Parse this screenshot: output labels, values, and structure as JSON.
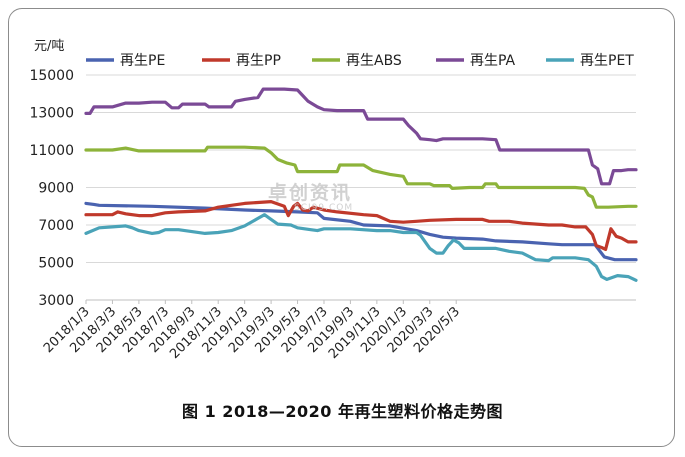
{
  "chart_data": {
    "type": "line",
    "ylabel": "元/吨",
    "ylim": [
      3000,
      15000
    ],
    "yticks": [
      3000,
      5000,
      7000,
      9000,
      11000,
      13000,
      15000
    ],
    "x_ticks": [
      "2018/1/3",
      "2018/3/3",
      "2018/5/3",
      "2018/7/3",
      "2018/9/3",
      "2018/11/3",
      "2019/1/3",
      "2019/3/3",
      "2019/5/3",
      "2019/7/3",
      "2019/9/3",
      "2019/11/3",
      "2020/1/3",
      "2020/3/3",
      "2020/5/3"
    ],
    "x_note": "x values are months since 2018/1 (decimal); last point ≈ 2020/6/20",
    "grid": "horizontal",
    "legend_position": "top",
    "series": [
      {
        "name": "再生PE",
        "color": "#4a63b0",
        "points": [
          [
            0,
            8150
          ],
          [
            0.6,
            8100
          ],
          [
            1,
            8050
          ],
          [
            5,
            8000
          ],
          [
            9,
            7900
          ],
          [
            12,
            7800
          ],
          [
            14,
            7750
          ],
          [
            16,
            7700
          ],
          [
            17.5,
            7650
          ],
          [
            18,
            7350
          ],
          [
            20,
            7200
          ],
          [
            21,
            7000
          ],
          [
            23,
            6950
          ],
          [
            25,
            6700
          ],
          [
            26,
            6500
          ],
          [
            27,
            6350
          ],
          [
            28,
            6300
          ],
          [
            30,
            6250
          ],
          [
            31,
            6150
          ],
          [
            33,
            6100
          ],
          [
            35,
            6000
          ],
          [
            36,
            5950
          ],
          [
            38,
            5950
          ],
          [
            38.5,
            5950
          ],
          [
            39.2,
            5300
          ],
          [
            40,
            5150
          ],
          [
            41,
            5150
          ],
          [
            41.6,
            5150
          ]
        ]
      },
      {
        "name": "再生PP",
        "color": "#c0392b",
        "points": [
          [
            0,
            7550
          ],
          [
            1,
            7550
          ],
          [
            2,
            7550
          ],
          [
            2.4,
            7700
          ],
          [
            3,
            7600
          ],
          [
            4,
            7500
          ],
          [
            5,
            7500
          ],
          [
            6,
            7650
          ],
          [
            7,
            7700
          ],
          [
            9,
            7750
          ],
          [
            10,
            7950
          ],
          [
            11,
            8050
          ],
          [
            12,
            8150
          ],
          [
            13,
            8200
          ],
          [
            14,
            8250
          ],
          [
            15,
            8000
          ],
          [
            15.3,
            7500
          ],
          [
            15.7,
            8000
          ],
          [
            16,
            8150
          ],
          [
            16.4,
            7800
          ],
          [
            16.8,
            7750
          ],
          [
            17.2,
            7950
          ],
          [
            18,
            7800
          ],
          [
            19,
            7700
          ],
          [
            21,
            7550
          ],
          [
            22,
            7500
          ],
          [
            23,
            7200
          ],
          [
            24,
            7150
          ],
          [
            25,
            7200
          ],
          [
            26,
            7250
          ],
          [
            28,
            7300
          ],
          [
            29,
            7300
          ],
          [
            30,
            7300
          ],
          [
            30.5,
            7200
          ],
          [
            32,
            7200
          ],
          [
            33,
            7100
          ],
          [
            35,
            7000
          ],
          [
            36,
            7000
          ],
          [
            37,
            6900
          ],
          [
            37.8,
            6900
          ],
          [
            38.3,
            6500
          ],
          [
            38.6,
            5900
          ],
          [
            39,
            5800
          ],
          [
            39.3,
            5700
          ],
          [
            39.7,
            6800
          ],
          [
            40.1,
            6400
          ],
          [
            40.5,
            6300
          ],
          [
            41,
            6100
          ],
          [
            41.6,
            6100
          ]
        ]
      },
      {
        "name": "再生ABS",
        "color": "#8db33a",
        "points": [
          [
            0,
            11000
          ],
          [
            2,
            11000
          ],
          [
            3,
            11100
          ],
          [
            4,
            10950
          ],
          [
            9,
            10950
          ],
          [
            9.2,
            11150
          ],
          [
            12,
            11150
          ],
          [
            13.5,
            11100
          ],
          [
            14,
            10850
          ],
          [
            14.5,
            10500
          ],
          [
            15.2,
            10300
          ],
          [
            15.8,
            10200
          ],
          [
            16,
            9850
          ],
          [
            19,
            9850
          ],
          [
            19.2,
            10200
          ],
          [
            21,
            10200
          ],
          [
            21.7,
            9900
          ],
          [
            23,
            9700
          ],
          [
            24,
            9600
          ],
          [
            24.3,
            9200
          ],
          [
            26,
            9200
          ],
          [
            26.3,
            9100
          ],
          [
            27.5,
            9100
          ],
          [
            27.7,
            8950
          ],
          [
            29,
            9000
          ],
          [
            30,
            9000
          ],
          [
            30.2,
            9200
          ],
          [
            31,
            9200
          ],
          [
            31.2,
            9000
          ],
          [
            37,
            9000
          ],
          [
            37.7,
            8950
          ],
          [
            38,
            8600
          ],
          [
            38.3,
            8500
          ],
          [
            38.6,
            7950
          ],
          [
            39.5,
            7950
          ],
          [
            41,
            8000
          ],
          [
            41.6,
            8000
          ]
        ]
      },
      {
        "name": "再生PA",
        "color": "#7b4a96",
        "points": [
          [
            0,
            12950
          ],
          [
            0.3,
            12950
          ],
          [
            0.6,
            13300
          ],
          [
            2,
            13300
          ],
          [
            3,
            13500
          ],
          [
            4,
            13500
          ],
          [
            5,
            13550
          ],
          [
            6,
            13550
          ],
          [
            6.5,
            13250
          ],
          [
            7,
            13250
          ],
          [
            7.3,
            13450
          ],
          [
            9,
            13450
          ],
          [
            9.3,
            13300
          ],
          [
            11,
            13300
          ],
          [
            11.3,
            13600
          ],
          [
            12,
            13700
          ],
          [
            13,
            13800
          ],
          [
            13.4,
            14250
          ],
          [
            15,
            14250
          ],
          [
            16,
            14200
          ],
          [
            16.4,
            13900
          ],
          [
            16.8,
            13600
          ],
          [
            17.5,
            13300
          ],
          [
            18,
            13150
          ],
          [
            19,
            13100
          ],
          [
            20,
            13100
          ],
          [
            21,
            13100
          ],
          [
            21.3,
            12650
          ],
          [
            23,
            12650
          ],
          [
            24,
            12650
          ],
          [
            24.4,
            12300
          ],
          [
            25,
            11900
          ],
          [
            25.3,
            11600
          ],
          [
            26,
            11550
          ],
          [
            26.5,
            11500
          ],
          [
            27,
            11600
          ],
          [
            30,
            11600
          ],
          [
            31,
            11550
          ],
          [
            31.3,
            11000
          ],
          [
            38,
            11000
          ],
          [
            38.3,
            10200
          ],
          [
            38.7,
            10000
          ],
          [
            39,
            9200
          ],
          [
            39.6,
            9200
          ],
          [
            39.9,
            9900
          ],
          [
            40.5,
            9900
          ],
          [
            41,
            9950
          ],
          [
            41.6,
            9950
          ]
        ]
      },
      {
        "name": "再生PET",
        "color": "#4aa3b8",
        "points": [
          [
            0,
            6550
          ],
          [
            1,
            6850
          ],
          [
            2,
            6900
          ],
          [
            3,
            6950
          ],
          [
            3.5,
            6850
          ],
          [
            4,
            6700
          ],
          [
            5,
            6550
          ],
          [
            5.5,
            6600
          ],
          [
            6,
            6750
          ],
          [
            7,
            6750
          ],
          [
            8,
            6650
          ],
          [
            9,
            6550
          ],
          [
            10,
            6600
          ],
          [
            11,
            6700
          ],
          [
            12,
            6950
          ],
          [
            13,
            7350
          ],
          [
            13.5,
            7550
          ],
          [
            14,
            7300
          ],
          [
            14.5,
            7050
          ],
          [
            15.5,
            7000
          ],
          [
            16,
            6850
          ],
          [
            17,
            6750
          ],
          [
            17.5,
            6700
          ],
          [
            18,
            6800
          ],
          [
            20,
            6800
          ],
          [
            22,
            6700
          ],
          [
            23,
            6700
          ],
          [
            24,
            6600
          ],
          [
            25,
            6600
          ],
          [
            25.3,
            6450
          ],
          [
            26,
            5750
          ],
          [
            26.5,
            5500
          ],
          [
            27,
            5500
          ],
          [
            27.4,
            5900
          ],
          [
            27.8,
            6200
          ],
          [
            28.2,
            6050
          ],
          [
            28.6,
            5750
          ],
          [
            29,
            5750
          ],
          [
            30,
            5750
          ],
          [
            31,
            5750
          ],
          [
            32,
            5600
          ],
          [
            33,
            5500
          ],
          [
            34,
            5150
          ],
          [
            35,
            5100
          ],
          [
            35.3,
            5250
          ],
          [
            37,
            5250
          ],
          [
            38,
            5150
          ],
          [
            38.6,
            4800
          ],
          [
            39,
            4250
          ],
          [
            39.4,
            4100
          ],
          [
            39.8,
            4200
          ],
          [
            40.2,
            4300
          ],
          [
            41,
            4250
          ],
          [
            41.6,
            4050
          ]
        ]
      }
    ]
  },
  "caption": "图 1   2018—2020 年再生塑料价格走势图",
  "watermark": {
    "main": "卓创资讯",
    "sub": "SCI99.COM"
  }
}
